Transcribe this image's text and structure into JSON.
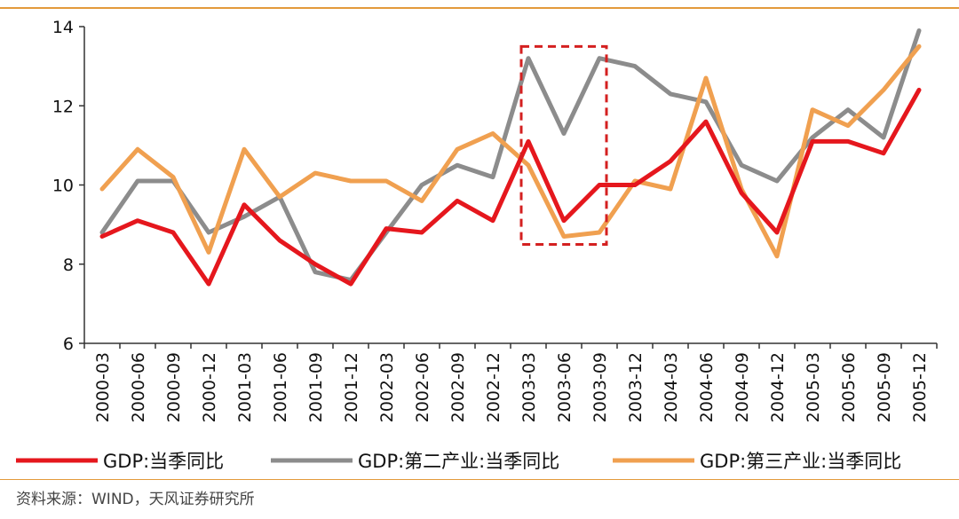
{
  "colors": {
    "rule": "#E39A3B",
    "axis": "#333333",
    "highlight_box": "#D42020"
  },
  "chart_data": {
    "type": "line",
    "x": [
      "2000-03",
      "2000-06",
      "2000-09",
      "2000-12",
      "2001-03",
      "2001-06",
      "2001-09",
      "2001-12",
      "2002-03",
      "2002-06",
      "2002-09",
      "2002-12",
      "2003-03",
      "2003-06",
      "2003-09",
      "2003-12",
      "2004-03",
      "2004-06",
      "2004-09",
      "2004-12",
      "2005-03",
      "2005-06",
      "2005-09",
      "2005-12"
    ],
    "ylim": [
      6,
      14
    ],
    "yticks": [
      "6",
      "8",
      "10",
      "12",
      "14"
    ],
    "series": [
      {
        "name": "GDP:当季同比",
        "color": "#E5171D",
        "values": [
          8.7,
          9.1,
          8.8,
          7.5,
          9.5,
          8.6,
          8.0,
          7.5,
          8.9,
          8.8,
          9.6,
          9.1,
          11.1,
          9.1,
          10.0,
          10.0,
          10.6,
          11.6,
          9.8,
          8.8,
          11.1,
          11.1,
          10.8,
          12.4
        ]
      },
      {
        "name": "GDP:第二产业:当季同比",
        "color": "#8C8C8C",
        "values": [
          8.8,
          10.1,
          10.1,
          8.8,
          9.2,
          9.7,
          7.8,
          7.6,
          8.8,
          10.0,
          10.5,
          10.2,
          13.2,
          11.3,
          13.2,
          13.0,
          12.3,
          12.1,
          10.5,
          10.1,
          11.2,
          11.9,
          11.2,
          13.9
        ]
      },
      {
        "name": "GDP:第三产业:当季同比",
        "color": "#F0A050",
        "values": [
          9.9,
          10.9,
          10.2,
          8.3,
          10.9,
          9.7,
          10.3,
          10.1,
          10.1,
          9.6,
          10.9,
          11.3,
          10.5,
          8.7,
          8.8,
          10.1,
          9.9,
          12.7,
          9.9,
          8.2,
          11.9,
          11.5,
          12.4,
          13.5
        ]
      }
    ],
    "highlight": {
      "x_start": "2003-03",
      "x_end": "2003-09",
      "y_range": [
        8.5,
        13.5
      ]
    },
    "grid": false,
    "legend_position": "bottom",
    "source": "资料来源：WIND，天风证券研究所"
  }
}
